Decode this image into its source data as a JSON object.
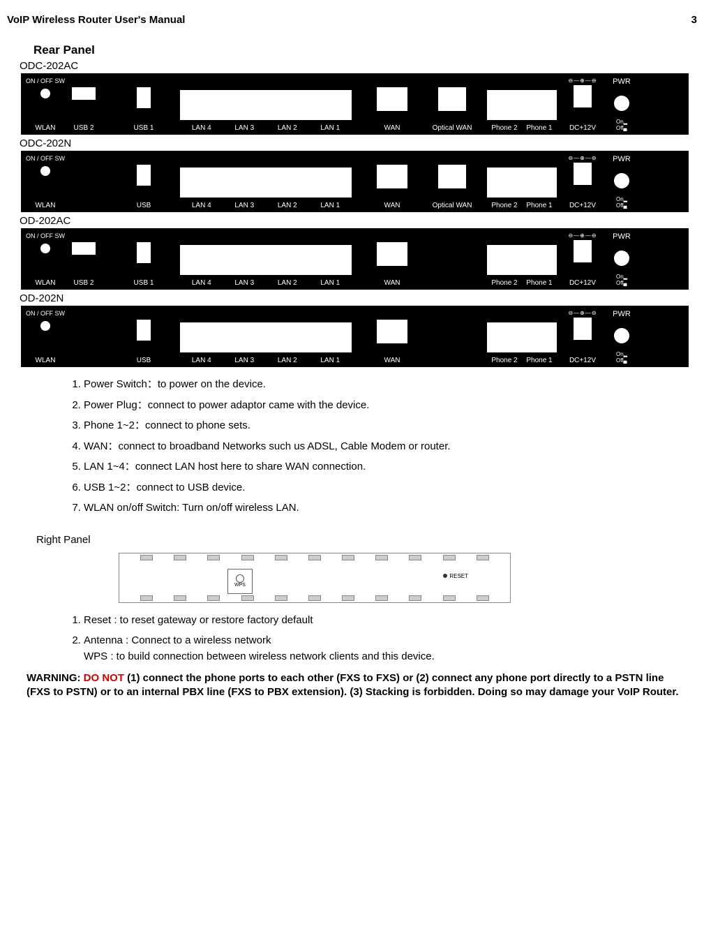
{
  "header": {
    "title": "VoIP Wireless Router User's Manual",
    "page": "3"
  },
  "section_title": "Rear Panel",
  "models": [
    {
      "label": "ODC-202AC",
      "labels": [
        "ON / OFF SW",
        "WLAN",
        "USB 2",
        "USB 1",
        "LAN 4",
        "LAN 3",
        "LAN 2",
        "LAN 1",
        "WAN",
        "Optical  WAN",
        "Phone 2",
        "Phone 1",
        "DC+12V",
        "PWR",
        "On",
        "Off"
      ],
      "has_usb2_slot": true,
      "has_optical_port": true,
      "usb_center_label": "USB 1",
      "polarity": "⊖—⊕—⊖"
    },
    {
      "label": "ODC-202N",
      "labels": [
        "ON / OFF SW",
        "WLAN",
        "",
        "USB",
        "LAN 4",
        "LAN 3",
        "LAN 2",
        "LAN 1",
        "WAN",
        "Optical  WAN",
        "Phone 2",
        "Phone 1",
        "DC+12V",
        "PWR",
        "On",
        "Off"
      ],
      "has_usb2_slot": false,
      "has_optical_port": true,
      "usb_center_label": "USB",
      "polarity": "⊖—⊕—⊖"
    },
    {
      "label": "OD-202AC",
      "labels": [
        "ON / OFF SW",
        "WLAN",
        "USB 2",
        "USB 1",
        "LAN 4",
        "LAN 3",
        "LAN 2",
        "LAN 1",
        "WAN",
        "",
        "Phone 2",
        "Phone 1",
        "DC+12V",
        "PWR",
        "On",
        "Off"
      ],
      "has_usb2_slot": true,
      "has_optical_port": false,
      "usb_center_label": "USB 1",
      "polarity": "⊖—⊕—⊖"
    },
    {
      "label": "OD-202N",
      "labels": [
        "ON / OFF SW",
        "WLAN",
        "",
        "USB",
        "LAN 4",
        "LAN 3",
        "LAN 2",
        "LAN 1",
        "WAN",
        "",
        "Phone 2",
        "Phone 1",
        "DC+12V",
        "PWR",
        "On",
        "Off"
      ],
      "has_usb2_slot": false,
      "has_optical_port": false,
      "usb_center_label": "USB",
      "polarity": "⊖—⊕—⊖"
    }
  ],
  "rear_list": [
    "Power Switch：to power on the device.",
    "Power Plug：connect to power adaptor came with the device.",
    "Phone 1~2：connect to phone sets.",
    "WAN：connect to broadband Networks such us ADSL, Cable Modem or router.",
    "LAN 1~4：connect LAN host here to share WAN connection.",
    "USB 1~2：connect to USB device.",
    "WLAN on/off Switch: Turn on/off wireless LAN."
  ],
  "right_panel_title": "Right Panel",
  "right_panel_labels": {
    "wps": "WPS",
    "reset": "RESET"
  },
  "right_list": [
    "Reset : to reset gateway or restore factory default",
    "Antenna : Connect to a wireless network\nWPS : to build connection between wireless network clients and this device."
  ],
  "warning": {
    "prefix": "WARNING: ",
    "donot": "DO NOT",
    "rest": " (1) connect the phone ports to each other (FXS to FXS) or (2) connect any phone port directly to a PSTN line (FXS to PSTN) or to an internal PBX line (FXS to PBX extension). (3) Stacking is forbidden. Doing so may damage your VoIP Router."
  },
  "layout": {
    "port_white": "#ffffff",
    "panel_black": "#000000"
  }
}
